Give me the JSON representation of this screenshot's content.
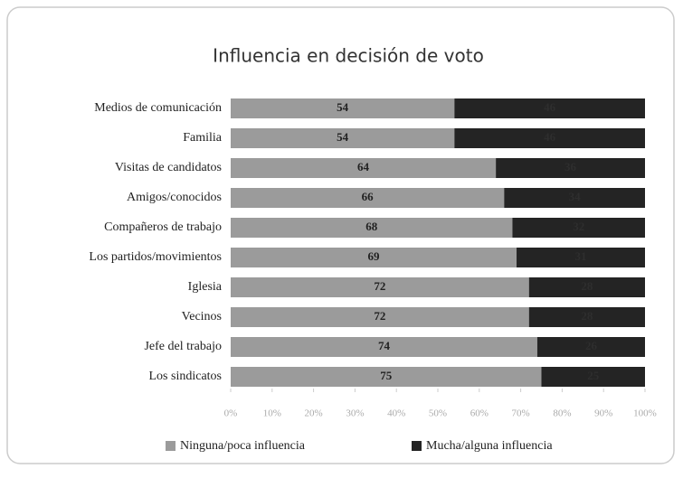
{
  "chart_data": {
    "type": "stacked-barh",
    "title": "Influencia en decisión de voto",
    "categories": [
      "Medios de comunicación",
      "Familia",
      "Visitas de candidatos",
      "Amigos/conocidos",
      "Compañeros de trabajo",
      "Los partidos/movimientos",
      "Iglesia",
      "Vecinos",
      "Jefe del trabajo",
      "Los sindicatos"
    ],
    "series": [
      {
        "name": "Ninguna/poca influencia",
        "color": "#9b9b9b",
        "values": [
          54,
          54,
          64,
          66,
          68,
          69,
          72,
          72,
          74,
          75
        ]
      },
      {
        "name": "Mucha/alguna influencia",
        "color": "#242424",
        "values": [
          46,
          46,
          36,
          34,
          32,
          31,
          28,
          28,
          26,
          25
        ]
      }
    ],
    "xlim": [
      0,
      100
    ],
    "xticks": [
      {
        "value": 0,
        "label": "0%"
      },
      {
        "value": 10,
        "label": "10%"
      },
      {
        "value": 20,
        "label": "20%"
      },
      {
        "value": 30,
        "label": "30%"
      },
      {
        "value": 40,
        "label": "40%"
      },
      {
        "value": 50,
        "label": "50%"
      },
      {
        "value": 60,
        "label": "60%"
      },
      {
        "value": 70,
        "label": "70%"
      },
      {
        "value": 80,
        "label": "80%"
      },
      {
        "value": 90,
        "label": "90%"
      },
      {
        "value": 100,
        "label": "100%"
      }
    ],
    "legend": "bottom"
  }
}
